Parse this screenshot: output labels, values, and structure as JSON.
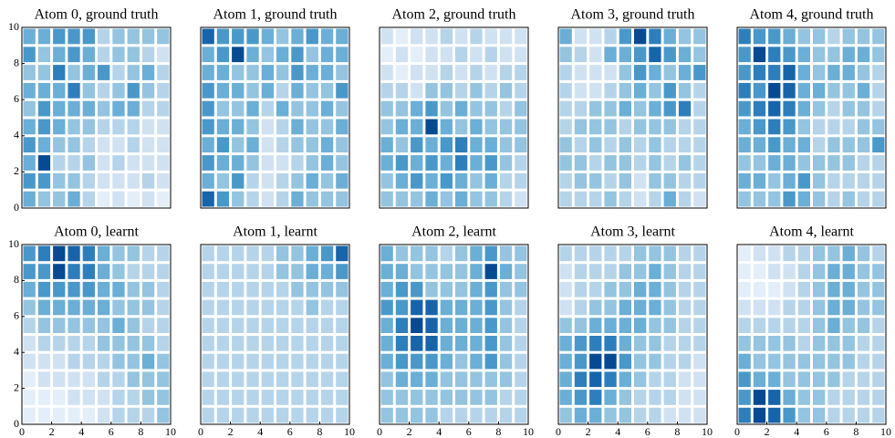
{
  "chart_data": [
    {
      "type": "heatmap",
      "title": "Atom 0, ground truth",
      "colormap": "Blues",
      "xlim": [
        0,
        10
      ],
      "ylim": [
        0,
        10
      ],
      "yticks": [
        0,
        2,
        4,
        6,
        8,
        10
      ],
      "z": [
        [
          0.5,
          0.5,
          0.6,
          0.6,
          0.6,
          0.3,
          0.4,
          0.4,
          0.4,
          0.4
        ],
        [
          0.6,
          0.4,
          0.5,
          0.6,
          0.5,
          0.3,
          0.4,
          0.4,
          0.3,
          0.2
        ],
        [
          0.4,
          0.4,
          0.7,
          0.4,
          0.5,
          0.6,
          0.3,
          0.4,
          0.5,
          0.3
        ],
        [
          0.5,
          0.5,
          0.5,
          0.7,
          0.4,
          0.3,
          0.4,
          0.6,
          0.4,
          0.3
        ],
        [
          0.4,
          0.6,
          0.5,
          0.5,
          0.5,
          0.4,
          0.5,
          0.5,
          0.3,
          0.3
        ],
        [
          0.5,
          0.6,
          0.5,
          0.4,
          0.4,
          0.3,
          0.3,
          0.3,
          0.2,
          0.2
        ],
        [
          0.6,
          0.5,
          0.4,
          0.4,
          0.3,
          0.2,
          0.2,
          0.3,
          0.2,
          0.2
        ],
        [
          0.5,
          0.9,
          0.3,
          0.3,
          0.4,
          0.2,
          0.3,
          0.2,
          0.2,
          0.2
        ],
        [
          0.6,
          0.6,
          0.4,
          0.4,
          0.3,
          0.2,
          0.2,
          0.2,
          0.3,
          0.2
        ],
        [
          0.5,
          0.4,
          0.4,
          0.5,
          0.3,
          0.1,
          0.2,
          0.1,
          0.2,
          0.1
        ]
      ]
    },
    {
      "type": "heatmap",
      "title": "Atom 1, ground truth",
      "colormap": "Blues",
      "xlim": [
        0,
        10
      ],
      "ylim": [
        0,
        10
      ],
      "z": [
        [
          0.8,
          0.6,
          0.6,
          0.6,
          0.5,
          0.4,
          0.5,
          0.6,
          0.5,
          0.5
        ],
        [
          0.5,
          0.6,
          0.9,
          0.5,
          0.4,
          0.5,
          0.6,
          0.4,
          0.5,
          0.5
        ],
        [
          0.5,
          0.5,
          0.4,
          0.4,
          0.5,
          0.4,
          0.6,
          0.5,
          0.5,
          0.4
        ],
        [
          0.6,
          0.5,
          0.5,
          0.4,
          0.5,
          0.3,
          0.5,
          0.4,
          0.4,
          0.6
        ],
        [
          0.6,
          0.4,
          0.4,
          0.5,
          0.3,
          0.5,
          0.4,
          0.4,
          0.5,
          0.4
        ],
        [
          0.6,
          0.5,
          0.5,
          0.4,
          0.2,
          0.3,
          0.5,
          0.4,
          0.4,
          0.5
        ],
        [
          0.5,
          0.6,
          0.4,
          0.5,
          0.2,
          0.3,
          0.4,
          0.4,
          0.5,
          0.4
        ],
        [
          0.6,
          0.5,
          0.5,
          0.4,
          0.2,
          0.2,
          0.3,
          0.4,
          0.5,
          0.4
        ],
        [
          0.5,
          0.4,
          0.6,
          0.3,
          0.2,
          0.3,
          0.4,
          0.5,
          0.4,
          0.5
        ],
        [
          0.8,
          0.6,
          0.4,
          0.3,
          0.2,
          0.3,
          0.5,
          0.4,
          0.4,
          0.4
        ]
      ]
    },
    {
      "type": "heatmap",
      "title": "Atom 2, ground truth",
      "colormap": "Blues",
      "xlim": [
        0,
        10
      ],
      "ylim": [
        0,
        10
      ],
      "z": [
        [
          0.2,
          0.1,
          0.2,
          0.2,
          0.3,
          0.2,
          0.3,
          0.2,
          0.2,
          0.2
        ],
        [
          0.1,
          0.2,
          0.1,
          0.2,
          0.2,
          0.3,
          0.2,
          0.3,
          0.2,
          0.2
        ],
        [
          0.2,
          0.1,
          0.2,
          0.2,
          0.3,
          0.2,
          0.3,
          0.2,
          0.3,
          0.3
        ],
        [
          0.3,
          0.3,
          0.2,
          0.4,
          0.4,
          0.3,
          0.4,
          0.3,
          0.4,
          0.3
        ],
        [
          0.4,
          0.4,
          0.5,
          0.6,
          0.4,
          0.5,
          0.4,
          0.4,
          0.3,
          0.4
        ],
        [
          0.4,
          0.5,
          0.5,
          0.9,
          0.5,
          0.4,
          0.5,
          0.4,
          0.4,
          0.4
        ],
        [
          0.5,
          0.4,
          0.6,
          0.5,
          0.6,
          0.7,
          0.5,
          0.5,
          0.4,
          0.4
        ],
        [
          0.5,
          0.6,
          0.5,
          0.6,
          0.5,
          0.7,
          0.5,
          0.6,
          0.4,
          0.3
        ],
        [
          0.4,
          0.5,
          0.6,
          0.5,
          0.6,
          0.5,
          0.4,
          0.5,
          0.3,
          0.3
        ],
        [
          0.4,
          0.4,
          0.4,
          0.5,
          0.4,
          0.5,
          0.4,
          0.4,
          0.3,
          0.2
        ]
      ]
    },
    {
      "type": "heatmap",
      "title": "Atom 3, ground truth",
      "colormap": "Blues",
      "xlim": [
        0,
        10
      ],
      "ylim": [
        0,
        10
      ],
      "z": [
        [
          0.5,
          0.2,
          0.2,
          0.3,
          0.6,
          0.9,
          0.7,
          0.5,
          0.4,
          0.4
        ],
        [
          0.4,
          0.3,
          0.2,
          0.5,
          0.5,
          0.6,
          0.8,
          0.6,
          0.5,
          0.4
        ],
        [
          0.3,
          0.2,
          0.2,
          0.2,
          0.4,
          0.6,
          0.5,
          0.4,
          0.5,
          0.6
        ],
        [
          0.3,
          0.2,
          0.2,
          0.3,
          0.4,
          0.5,
          0.4,
          0.6,
          0.4,
          0.3
        ],
        [
          0.3,
          0.3,
          0.4,
          0.4,
          0.5,
          0.4,
          0.5,
          0.6,
          0.7,
          0.3
        ],
        [
          0.3,
          0.4,
          0.4,
          0.4,
          0.3,
          0.4,
          0.4,
          0.4,
          0.3,
          0.3
        ],
        [
          0.4,
          0.3,
          0.4,
          0.3,
          0.4,
          0.3,
          0.4,
          0.3,
          0.3,
          0.3
        ],
        [
          0.4,
          0.4,
          0.3,
          0.4,
          0.4,
          0.3,
          0.4,
          0.3,
          0.4,
          0.3
        ],
        [
          0.3,
          0.4,
          0.4,
          0.3,
          0.4,
          0.2,
          0.4,
          0.4,
          0.3,
          0.3
        ],
        [
          0.3,
          0.3,
          0.3,
          0.4,
          0.3,
          0.2,
          0.3,
          0.5,
          0.3,
          0.2
        ]
      ]
    },
    {
      "type": "heatmap",
      "title": "Atom 4, ground truth",
      "colormap": "Blues",
      "xlim": [
        0,
        10
      ],
      "ylim": [
        0,
        10
      ],
      "z": [
        [
          0.7,
          0.6,
          0.6,
          0.5,
          0.4,
          0.4,
          0.3,
          0.4,
          0.4,
          0.4
        ],
        [
          0.6,
          0.9,
          0.7,
          0.6,
          0.5,
          0.4,
          0.4,
          0.5,
          0.5,
          0.4
        ],
        [
          0.6,
          0.7,
          0.7,
          0.8,
          0.5,
          0.4,
          0.5,
          0.5,
          0.4,
          0.3
        ],
        [
          0.7,
          0.6,
          0.9,
          0.8,
          0.5,
          0.5,
          0.4,
          0.4,
          0.5,
          0.3
        ],
        [
          0.6,
          0.7,
          0.8,
          0.7,
          0.5,
          0.4,
          0.3,
          0.4,
          0.4,
          0.3
        ],
        [
          0.5,
          0.6,
          0.7,
          0.6,
          0.4,
          0.3,
          0.3,
          0.3,
          0.4,
          0.4
        ],
        [
          0.5,
          0.5,
          0.6,
          0.5,
          0.5,
          0.3,
          0.4,
          0.4,
          0.4,
          0.6
        ],
        [
          0.4,
          0.4,
          0.5,
          0.5,
          0.4,
          0.4,
          0.4,
          0.4,
          0.3,
          0.3
        ],
        [
          0.5,
          0.5,
          0.4,
          0.5,
          0.6,
          0.4,
          0.3,
          0.3,
          0.3,
          0.3
        ],
        [
          0.4,
          0.4,
          0.4,
          0.6,
          0.5,
          0.4,
          0.3,
          0.4,
          0.3,
          0.3
        ]
      ]
    },
    {
      "type": "heatmap",
      "title": "Atom 0, learnt",
      "colormap": "Blues",
      "xlim": [
        0,
        10
      ],
      "ylim": [
        0,
        10
      ],
      "xticks": [
        0,
        2,
        4,
        6,
        8,
        10
      ],
      "yticks": [
        0,
        2,
        4,
        6,
        8,
        10
      ],
      "z": [
        [
          0.6,
          0.7,
          0.9,
          0.8,
          0.7,
          0.5,
          0.4,
          0.4,
          0.3,
          0.3
        ],
        [
          0.6,
          0.6,
          0.9,
          0.7,
          0.7,
          0.5,
          0.4,
          0.3,
          0.3,
          0.3
        ],
        [
          0.5,
          0.6,
          0.6,
          0.6,
          0.6,
          0.5,
          0.5,
          0.4,
          0.4,
          0.3
        ],
        [
          0.4,
          0.5,
          0.5,
          0.5,
          0.5,
          0.5,
          0.4,
          0.4,
          0.4,
          0.3
        ],
        [
          0.3,
          0.4,
          0.4,
          0.4,
          0.4,
          0.4,
          0.5,
          0.4,
          0.3,
          0.3
        ],
        [
          0.2,
          0.3,
          0.3,
          0.3,
          0.3,
          0.4,
          0.4,
          0.4,
          0.4,
          0.3
        ],
        [
          0.2,
          0.2,
          0.2,
          0.3,
          0.3,
          0.3,
          0.4,
          0.4,
          0.5,
          0.4
        ],
        [
          0.1,
          0.2,
          0.2,
          0.2,
          0.2,
          0.3,
          0.3,
          0.4,
          0.4,
          0.4
        ],
        [
          0.1,
          0.1,
          0.1,
          0.2,
          0.2,
          0.2,
          0.3,
          0.3,
          0.4,
          0.4
        ],
        [
          0.1,
          0.1,
          0.1,
          0.1,
          0.1,
          0.2,
          0.3,
          0.3,
          0.3,
          0.4
        ]
      ]
    },
    {
      "type": "heatmap",
      "title": "Atom 1, learnt",
      "colormap": "Blues",
      "xlim": [
        0,
        10
      ],
      "ylim": [
        0,
        10
      ],
      "xticks": [
        0,
        2,
        4,
        6,
        8,
        10
      ],
      "z": [
        [
          0.3,
          0.3,
          0.3,
          0.3,
          0.3,
          0.4,
          0.4,
          0.5,
          0.6,
          0.8
        ],
        [
          0.3,
          0.3,
          0.3,
          0.3,
          0.3,
          0.4,
          0.4,
          0.5,
          0.5,
          0.6
        ],
        [
          0.3,
          0.3,
          0.3,
          0.3,
          0.3,
          0.3,
          0.4,
          0.4,
          0.4,
          0.4
        ],
        [
          0.3,
          0.3,
          0.3,
          0.3,
          0.3,
          0.3,
          0.3,
          0.4,
          0.3,
          0.3
        ],
        [
          0.3,
          0.3,
          0.3,
          0.3,
          0.3,
          0.3,
          0.3,
          0.3,
          0.3,
          0.3
        ],
        [
          0.3,
          0.3,
          0.3,
          0.3,
          0.3,
          0.3,
          0.3,
          0.3,
          0.3,
          0.3
        ],
        [
          0.3,
          0.3,
          0.3,
          0.3,
          0.3,
          0.3,
          0.3,
          0.3,
          0.3,
          0.3
        ],
        [
          0.3,
          0.3,
          0.3,
          0.3,
          0.3,
          0.3,
          0.3,
          0.3,
          0.3,
          0.3
        ],
        [
          0.3,
          0.3,
          0.3,
          0.3,
          0.3,
          0.3,
          0.3,
          0.3,
          0.3,
          0.3
        ],
        [
          0.3,
          0.3,
          0.3,
          0.3,
          0.3,
          0.3,
          0.3,
          0.3,
          0.3,
          0.3
        ]
      ]
    },
    {
      "type": "heatmap",
      "title": "Atom 2, learnt",
      "colormap": "Blues",
      "xlim": [
        0,
        10
      ],
      "ylim": [
        0,
        10
      ],
      "xticks": [
        0,
        2,
        4,
        6,
        8,
        10
      ],
      "z": [
        [
          0.5,
          0.4,
          0.4,
          0.4,
          0.3,
          0.4,
          0.5,
          0.6,
          0.4,
          0.4
        ],
        [
          0.5,
          0.5,
          0.4,
          0.4,
          0.4,
          0.4,
          0.5,
          0.9,
          0.5,
          0.4
        ],
        [
          0.5,
          0.6,
          0.6,
          0.4,
          0.4,
          0.4,
          0.5,
          0.6,
          0.4,
          0.4
        ],
        [
          0.6,
          0.6,
          0.8,
          0.8,
          0.5,
          0.5,
          0.5,
          0.6,
          0.4,
          0.3
        ],
        [
          0.5,
          0.7,
          0.9,
          0.8,
          0.5,
          0.5,
          0.5,
          0.6,
          0.4,
          0.3
        ],
        [
          0.5,
          0.7,
          0.8,
          0.8,
          0.5,
          0.5,
          0.5,
          0.6,
          0.4,
          0.3
        ],
        [
          0.5,
          0.6,
          0.6,
          0.6,
          0.5,
          0.4,
          0.5,
          0.6,
          0.4,
          0.3
        ],
        [
          0.4,
          0.5,
          0.5,
          0.5,
          0.4,
          0.4,
          0.4,
          0.4,
          0.4,
          0.3
        ],
        [
          0.4,
          0.4,
          0.4,
          0.4,
          0.4,
          0.4,
          0.4,
          0.4,
          0.3,
          0.3
        ],
        [
          0.4,
          0.4,
          0.4,
          0.4,
          0.3,
          0.3,
          0.3,
          0.3,
          0.3,
          0.3
        ]
      ]
    },
    {
      "type": "heatmap",
      "title": "Atom 3, learnt",
      "colormap": "Blues",
      "xlim": [
        0,
        10
      ],
      "ylim": [
        0,
        10
      ],
      "xticks": [
        0,
        2,
        4,
        6,
        8,
        10
      ],
      "z": [
        [
          0.3,
          0.3,
          0.3,
          0.3,
          0.3,
          0.4,
          0.4,
          0.4,
          0.3,
          0.3
        ],
        [
          0.2,
          0.3,
          0.3,
          0.3,
          0.4,
          0.4,
          0.5,
          0.4,
          0.3,
          0.3
        ],
        [
          0.2,
          0.3,
          0.3,
          0.4,
          0.4,
          0.5,
          0.5,
          0.4,
          0.3,
          0.3
        ],
        [
          0.2,
          0.3,
          0.4,
          0.4,
          0.5,
          0.5,
          0.5,
          0.4,
          0.3,
          0.3
        ],
        [
          0.4,
          0.4,
          0.5,
          0.5,
          0.5,
          0.5,
          0.4,
          0.4,
          0.3,
          0.3
        ],
        [
          0.5,
          0.6,
          0.7,
          0.7,
          0.5,
          0.4,
          0.4,
          0.3,
          0.3,
          0.3
        ],
        [
          0.5,
          0.6,
          0.9,
          0.9,
          0.6,
          0.4,
          0.4,
          0.3,
          0.3,
          0.2
        ],
        [
          0.5,
          0.7,
          0.8,
          0.7,
          0.5,
          0.4,
          0.3,
          0.3,
          0.2,
          0.2
        ],
        [
          0.5,
          0.6,
          0.7,
          0.5,
          0.4,
          0.3,
          0.3,
          0.3,
          0.2,
          0.2
        ],
        [
          0.4,
          0.5,
          0.5,
          0.4,
          0.4,
          0.3,
          0.3,
          0.2,
          0.2,
          0.2
        ]
      ]
    },
    {
      "type": "heatmap",
      "title": "Atom 4, learnt",
      "colormap": "Blues",
      "xlim": [
        0,
        10
      ],
      "ylim": [
        0,
        10
      ],
      "xticks": [
        0,
        2,
        4,
        6,
        8,
        10
      ],
      "z": [
        [
          0.1,
          0.2,
          0.2,
          0.3,
          0.3,
          0.4,
          0.4,
          0.5,
          0.4,
          0.3
        ],
        [
          0.1,
          0.1,
          0.2,
          0.2,
          0.3,
          0.4,
          0.5,
          0.5,
          0.4,
          0.4
        ],
        [
          0.1,
          0.1,
          0.1,
          0.2,
          0.3,
          0.4,
          0.5,
          0.5,
          0.4,
          0.4
        ],
        [
          0.2,
          0.2,
          0.2,
          0.3,
          0.3,
          0.4,
          0.5,
          0.5,
          0.4,
          0.4
        ],
        [
          0.3,
          0.3,
          0.3,
          0.3,
          0.3,
          0.4,
          0.5,
          0.4,
          0.4,
          0.3
        ],
        [
          0.4,
          0.4,
          0.4,
          0.4,
          0.3,
          0.4,
          0.4,
          0.4,
          0.3,
          0.3
        ],
        [
          0.5,
          0.4,
          0.4,
          0.4,
          0.4,
          0.4,
          0.4,
          0.4,
          0.3,
          0.3
        ],
        [
          0.6,
          0.5,
          0.5,
          0.4,
          0.4,
          0.4,
          0.4,
          0.3,
          0.3,
          0.3
        ],
        [
          0.6,
          0.9,
          0.8,
          0.5,
          0.4,
          0.4,
          0.3,
          0.3,
          0.3,
          0.3
        ],
        [
          0.7,
          0.9,
          0.8,
          0.6,
          0.4,
          0.4,
          0.3,
          0.3,
          0.3,
          0.3
        ]
      ]
    }
  ]
}
